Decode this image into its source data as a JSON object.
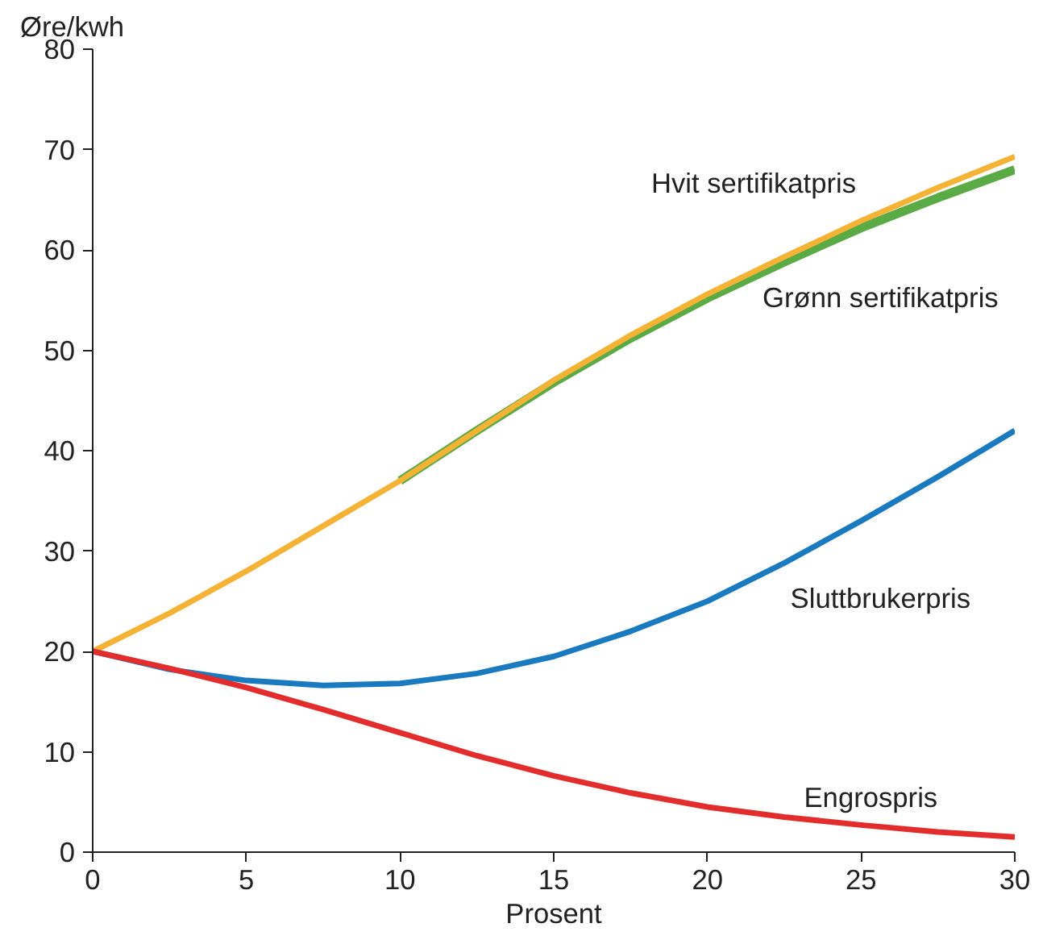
{
  "chart_data": {
    "type": "line",
    "xlabel": "Prosent",
    "ylabel": "Øre/kwh",
    "x": [
      0,
      2.5,
      5,
      7.5,
      10,
      12.5,
      15,
      17.5,
      20,
      22.5,
      25,
      27.5,
      30
    ],
    "series": [
      {
        "name": "Grønn sertifikatpris",
        "color": "#5aab46",
        "values": [
          null,
          null,
          null,
          null,
          37,
          42,
          46.8,
          51.2,
          55.2,
          58.8,
          62.2,
          65.2,
          68
        ]
      },
      {
        "name": "Hvit sertifikatpris",
        "color": "#f5b335",
        "values": [
          20,
          23.8,
          28,
          32.5,
          37,
          42,
          47,
          51.5,
          55.6,
          59.3,
          62.9,
          66.2,
          69.3
        ]
      },
      {
        "name": "Sluttbrukerpris",
        "color": "#1a7abf",
        "values": [
          20,
          18.2,
          17.1,
          16.6,
          16.8,
          17.8,
          19.5,
          22,
          25,
          28.8,
          33,
          37.4,
          42
        ]
      },
      {
        "name": "Engrospris",
        "color": "#e32d2d",
        "values": [
          20,
          18.3,
          16.4,
          14.2,
          11.9,
          9.6,
          7.6,
          5.9,
          4.5,
          3.5,
          2.7,
          2,
          1.5
        ]
      }
    ],
    "xlim": [
      0,
      30
    ],
    "ylim": [
      0,
      80
    ],
    "xticks": [
      0,
      5,
      10,
      15,
      20,
      25,
      30
    ],
    "yticks": [
      0,
      10,
      20,
      30,
      40,
      50,
      60,
      70,
      80
    ],
    "grid": false
  }
}
